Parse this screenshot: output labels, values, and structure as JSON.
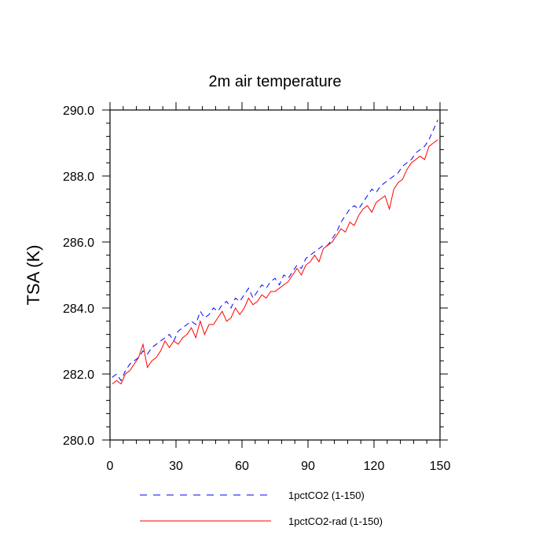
{
  "chart_data": {
    "type": "line",
    "title": "2m air temperature",
    "xlabel": "",
    "ylabel": "TSA (K)",
    "xlim": [
      0,
      150
    ],
    "ylim": [
      280,
      290
    ],
    "xticks": [
      0,
      30,
      60,
      90,
      120,
      150
    ],
    "xtick_labels": [
      "0",
      "30",
      "60",
      "90",
      "120",
      "150"
    ],
    "yticks": [
      280,
      282,
      284,
      286,
      288,
      290
    ],
    "ytick_labels": [
      "280.0",
      "282.0",
      "284.0",
      "286.0",
      "288.0",
      "290.0"
    ],
    "grid": false,
    "legend_position": "bottom",
    "series": [
      {
        "name": "1pctCO2 (1-150)",
        "color": "#0000ff",
        "dash": "dashed",
        "x": [
          1,
          3,
          5,
          7,
          9,
          11,
          13,
          15,
          17,
          19,
          21,
          23,
          25,
          27,
          29,
          31,
          33,
          35,
          37,
          39,
          41,
          43,
          45,
          47,
          49,
          51,
          53,
          55,
          57,
          59,
          61,
          63,
          65,
          67,
          69,
          71,
          73,
          75,
          77,
          79,
          81,
          83,
          85,
          87,
          89,
          91,
          93,
          95,
          97,
          99,
          101,
          103,
          105,
          107,
          109,
          111,
          113,
          115,
          117,
          119,
          121,
          123,
          125,
          127,
          129,
          131,
          133,
          135,
          137,
          139,
          141,
          143,
          145,
          147,
          149
        ],
        "y": [
          281.9,
          282.0,
          281.8,
          282.1,
          282.3,
          282.4,
          282.5,
          282.7,
          282.6,
          282.8,
          282.9,
          283.0,
          283.1,
          283.2,
          283.0,
          283.3,
          283.4,
          283.5,
          283.6,
          283.5,
          283.9,
          283.7,
          283.8,
          284.0,
          283.9,
          284.1,
          284.2,
          284.0,
          284.3,
          284.2,
          284.4,
          284.6,
          284.3,
          284.5,
          284.7,
          284.6,
          284.8,
          284.9,
          284.7,
          285.0,
          284.9,
          285.1,
          285.3,
          285.2,
          285.5,
          285.6,
          285.7,
          285.8,
          285.9,
          285.9,
          286.1,
          286.3,
          286.6,
          286.8,
          287.0,
          287.1,
          287.0,
          287.2,
          287.4,
          287.6,
          287.5,
          287.7,
          287.8,
          287.9,
          288.0,
          288.1,
          288.3,
          288.4,
          288.5,
          288.7,
          288.8,
          288.9,
          289.1,
          289.4,
          289.7
        ]
      },
      {
        "name": "1pctCO2-rad (1-150)",
        "color": "#ff0000",
        "dash": "solid",
        "x": [
          1,
          3,
          5,
          7,
          9,
          11,
          13,
          15,
          17,
          19,
          21,
          23,
          25,
          27,
          29,
          31,
          33,
          35,
          37,
          39,
          41,
          43,
          45,
          47,
          49,
          51,
          53,
          55,
          57,
          59,
          61,
          63,
          65,
          67,
          69,
          71,
          73,
          75,
          77,
          79,
          81,
          83,
          85,
          87,
          89,
          91,
          93,
          95,
          97,
          99,
          101,
          103,
          105,
          107,
          109,
          111,
          113,
          115,
          117,
          119,
          121,
          123,
          125,
          127,
          129,
          131,
          133,
          135,
          137,
          139,
          141,
          143,
          145,
          147,
          149
        ],
        "y": [
          281.7,
          281.8,
          281.7,
          282.0,
          282.1,
          282.3,
          282.5,
          282.9,
          282.2,
          282.4,
          282.5,
          282.7,
          283.0,
          282.8,
          283.0,
          282.9,
          283.1,
          283.2,
          283.4,
          283.1,
          283.6,
          283.2,
          283.5,
          283.5,
          283.7,
          283.9,
          283.6,
          283.7,
          284.0,
          283.8,
          284.0,
          284.3,
          284.1,
          284.2,
          284.4,
          284.3,
          284.5,
          284.5,
          284.6,
          284.7,
          284.8,
          285.0,
          285.2,
          285.0,
          285.3,
          285.4,
          285.6,
          285.4,
          285.8,
          285.9,
          286.0,
          286.2,
          286.4,
          286.3,
          286.6,
          286.5,
          286.8,
          287.0,
          287.1,
          286.9,
          287.2,
          287.3,
          287.4,
          287.0,
          287.6,
          287.8,
          287.9,
          288.2,
          288.4,
          288.5,
          288.6,
          288.5,
          288.9,
          289.0,
          289.1
        ]
      }
    ]
  }
}
